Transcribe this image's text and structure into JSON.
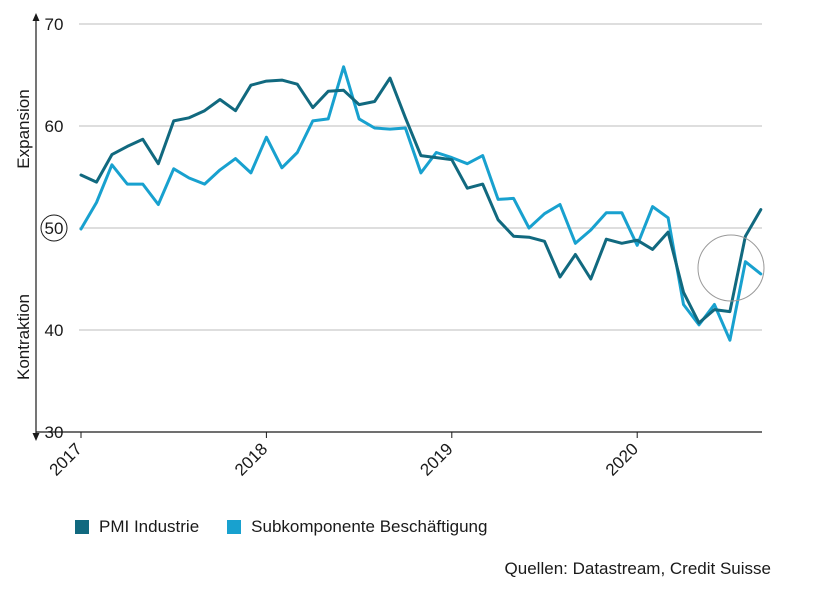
{
  "chart_data": {
    "type": "line",
    "ylim": [
      30,
      70
    ],
    "yticks": [
      30,
      40,
      50,
      60,
      70
    ],
    "highlight_tick": "50",
    "x_tick_labels": [
      "2017",
      "2018",
      "2019",
      "2020"
    ],
    "y_labels": {
      "upper": "Expansion",
      "lower": "Kontraktion"
    },
    "grid": "horizontal",
    "start": "2017-01",
    "series": [
      {
        "name": "PMI Industrie",
        "color": "#11697f",
        "values": [
          55.2,
          54.5,
          57.2,
          58.0,
          58.7,
          56.3,
          60.5,
          60.8,
          61.5,
          62.6,
          61.5,
          64.0,
          64.4,
          64.5,
          64.1,
          61.8,
          63.4,
          63.5,
          62.1,
          62.4,
          64.7,
          60.8,
          57.1,
          56.9,
          56.7,
          53.9,
          54.3,
          50.8,
          49.2,
          49.1,
          48.7,
          45.2,
          47.4,
          45.0,
          48.9,
          48.5,
          48.8,
          47.9,
          49.6,
          43.7,
          40.7,
          42.0,
          41.8,
          49.2,
          51.8
        ]
      },
      {
        "name": "Subkomponente Beschäftigung",
        "color": "#18a1cf",
        "values": [
          49.9,
          52.5,
          56.2,
          54.3,
          54.3,
          52.3,
          55.8,
          54.9,
          54.3,
          55.7,
          56.8,
          55.4,
          58.9,
          55.9,
          57.4,
          60.5,
          60.7,
          65.8,
          60.7,
          59.8,
          59.7,
          59.8,
          55.4,
          57.4,
          56.9,
          56.3,
          57.1,
          52.8,
          52.9,
          50.0,
          51.4,
          52.3,
          48.5,
          49.8,
          51.5,
          51.5,
          48.3,
          52.1,
          51.0,
          42.5,
          40.5,
          42.5,
          39.0,
          46.7,
          45.5
        ]
      }
    ]
  },
  "legend": {
    "items": [
      {
        "label": "PMI Industrie",
        "color": "#11697f"
      },
      {
        "label": "Subkomponente Beschäftigung",
        "color": "#18a1cf"
      }
    ]
  },
  "source": "Quellen: Datastream, Credit Suisse"
}
